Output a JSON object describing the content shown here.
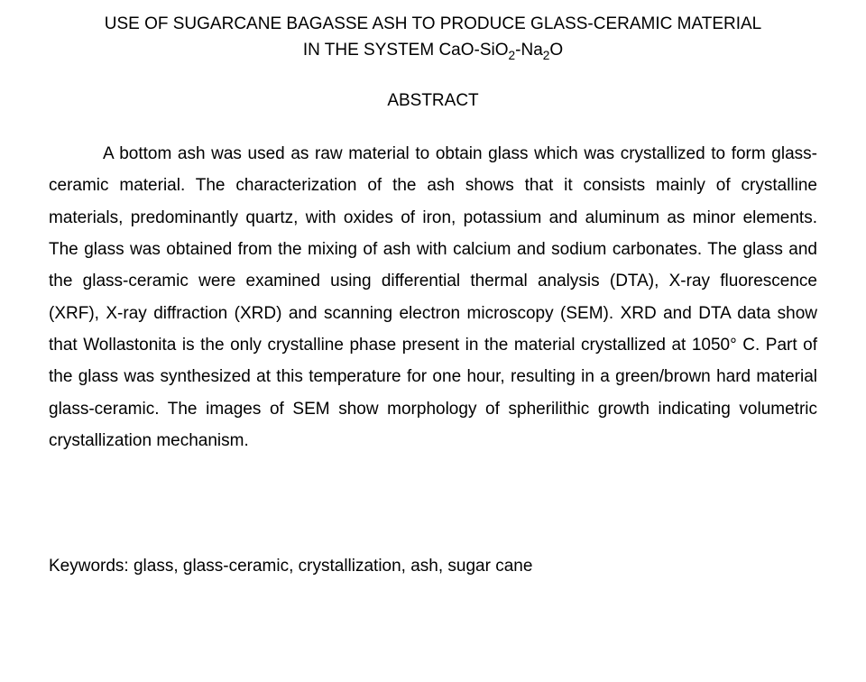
{
  "title": {
    "line1_prefix": "USE OF SUGARCANE BAGASSE ASH TO PRODUCE GLASS-CERAMIC MATERIAL",
    "line2_prefix": "IN THE SYSTEM CaO-SiO",
    "line2_sub1": "2",
    "line2_mid": "-Na",
    "line2_sub2": "2",
    "line2_suffix": "O"
  },
  "abstract_heading": "ABSTRACT",
  "abstract_body": "A bottom ash was used as raw material to obtain glass which was crystallized to form glass-ceramic material. The characterization of the ash shows that it consists mainly of crystalline materials, predominantly quartz, with oxides of iron, potassium and aluminum as minor elements. The glass was obtained from the mixing of ash with calcium and sodium carbonates. The glass and the glass-ceramic were examined using differential thermal analysis (DTA), X-ray fluorescence (XRF), X-ray diffraction (XRD) and scanning electron microscopy (SEM). XRD and DTA data show that Wollastonita is the only crystalline phase present in the material crystallized at 1050° C. Part of the glass was synthesized at this temperature for one hour, resulting in a green/brown hard material glass-ceramic. The images of SEM show morphology of spherilithic growth indicating volumetric crystallization mechanism.",
  "keywords": "Keywords: glass, glass-ceramic, crystallization, ash, sugar cane"
}
